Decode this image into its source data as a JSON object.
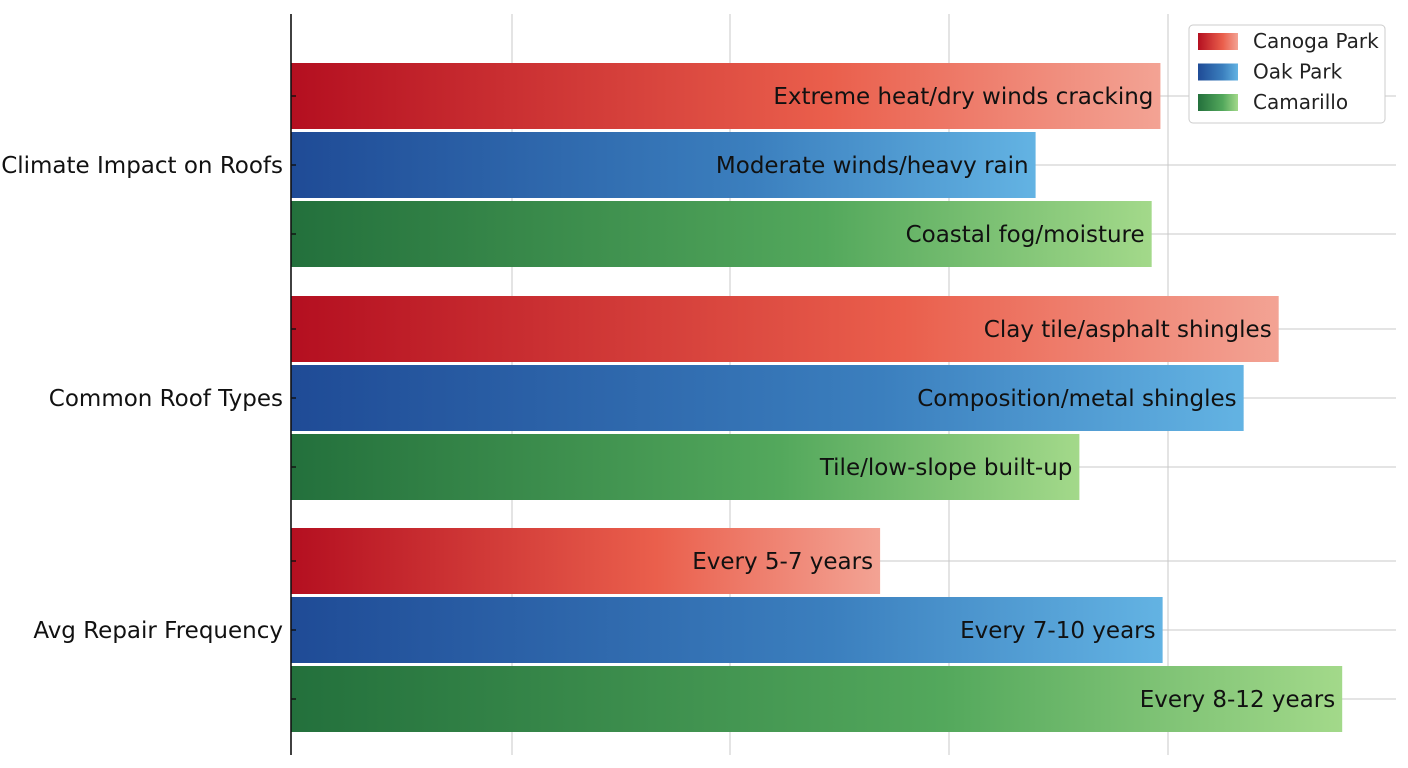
{
  "chart_data": {
    "type": "bar",
    "orientation": "horizontal",
    "title": "",
    "xlabel": "",
    "ylabel": "",
    "categories": [
      "Climate Impact on Roofs",
      "Common Roof Types",
      "Avg Repair Frequency"
    ],
    "xlim": [
      0,
      5.05
    ],
    "grid": true,
    "legend_position": "top-right",
    "series": [
      {
        "name": "Canoga Park",
        "color_start": "#b40f20",
        "color_mid": "#ea5f4c",
        "color_end": "#f3a394",
        "values": [
          3.97,
          4.51,
          2.69
        ],
        "labels": [
          "Extreme heat/dry winds cracking",
          "Clay tile/asphalt shingles",
          "Every 5-7 years"
        ]
      },
      {
        "name": "Oak Park",
        "color_start": "#1f4b96",
        "color_mid": "#3b7fbe",
        "color_end": "#63b3e3",
        "values": [
          3.4,
          4.35,
          3.98
        ],
        "labels": [
          "Moderate winds/heavy rain",
          "Composition/metal shingles",
          "Every 7-10 years"
        ]
      },
      {
        "name": "Camarillo",
        "color_start": "#23703c",
        "color_mid": "#53a85c",
        "color_end": "#a3d98a",
        "values": [
          3.93,
          3.6,
          4.8
        ],
        "labels": [
          "Coastal fog/moisture",
          "Tile/low-slope built-up",
          "Every 8-12 years"
        ]
      }
    ]
  }
}
